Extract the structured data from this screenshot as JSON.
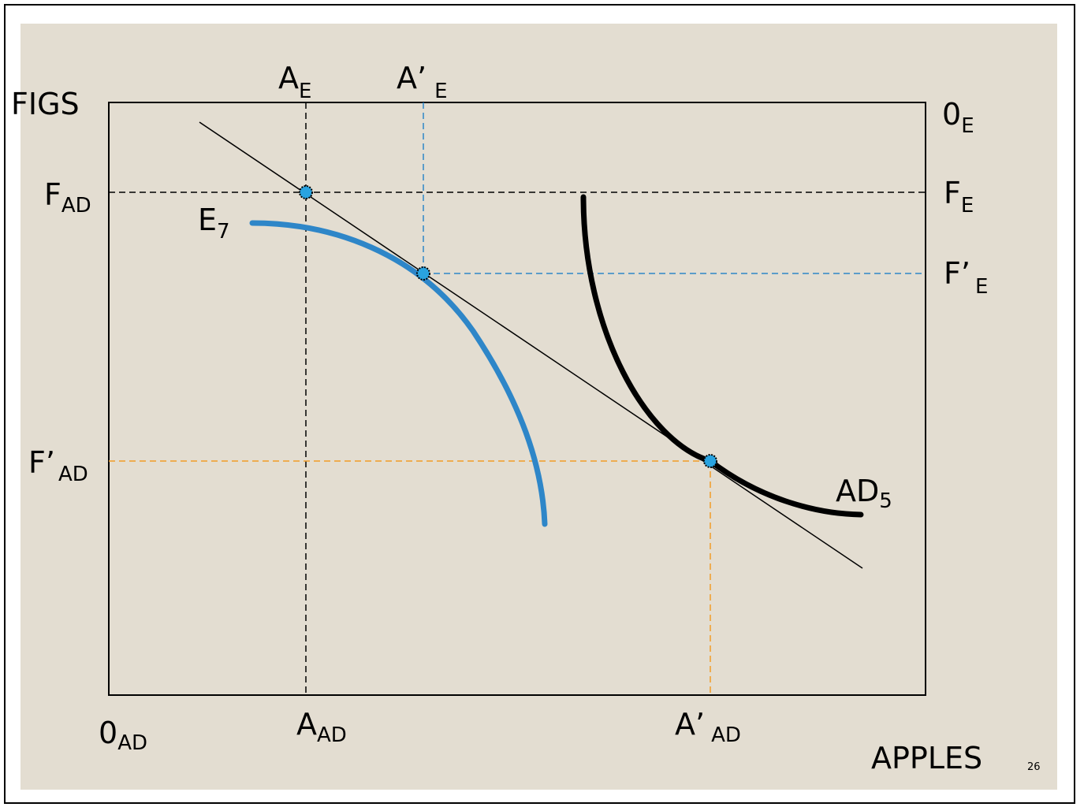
{
  "colors": {
    "background": "#e3ddd1",
    "blue_curve": "#2e86c8",
    "black_curve": "#000000",
    "orange_guide": "#f29b27",
    "blue_guide": "#2e86c8",
    "point_fill": "#29a3e0"
  },
  "labels": {
    "figs": "FIGS",
    "apples": "APPLES",
    "origin_ad_main": "0",
    "origin_ad_sub": "AD",
    "origin_e_main": "0",
    "origin_e_sub": "E",
    "a_e_main": "A",
    "a_e_sub": "E",
    "a_prime_e_main": "A’",
    "a_prime_e_sub": "E",
    "f_ad_main": "F",
    "f_ad_sub": "AD",
    "f_e_main": "F",
    "f_e_sub": "E",
    "f_prime_e_main": "F’",
    "f_prime_e_sub": "E",
    "f_prime_ad_main": "F’",
    "f_prime_ad_sub": "AD",
    "a_ad_main": "A",
    "a_ad_sub": "AD",
    "a_prime_ad_main": "A’",
    "a_prime_ad_sub": "AD",
    "e7_main": "E",
    "e7_sub": "7",
    "ad5_main": "AD",
    "ad5_sub": "5"
  },
  "page_number": "26"
}
